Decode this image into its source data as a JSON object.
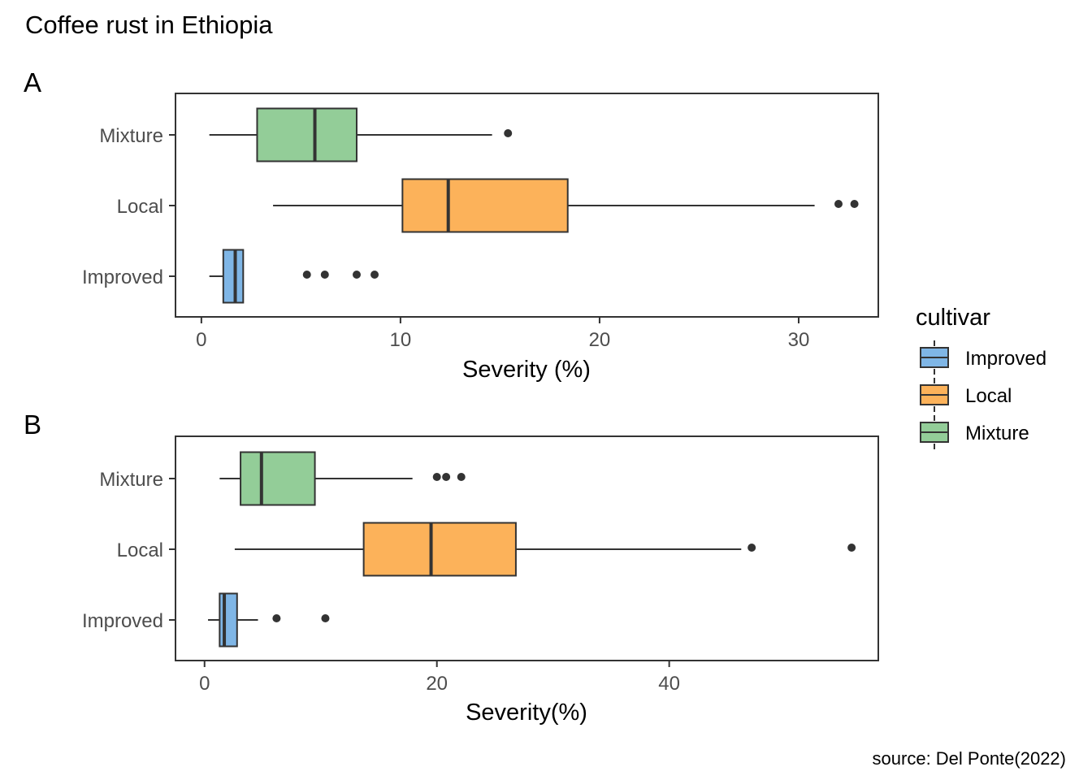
{
  "title": "Coffee rust in Ethiopia",
  "caption": "source: Del Ponte(2022)",
  "legend": {
    "title": "cultivar",
    "position": "right",
    "entries": [
      {
        "label": "Improved",
        "color": "#7fb6e6"
      },
      {
        "label": "Local",
        "color": "#fcb25a"
      },
      {
        "label": "Mixture",
        "color": "#93cd98"
      }
    ]
  },
  "chart_data": [
    {
      "panel_tag": "A",
      "type": "boxplot",
      "orientation": "horizontal",
      "xlabel": "Severity (%)",
      "ylabel": "",
      "xticks": [
        0,
        10,
        20,
        30
      ],
      "xlim": [
        -1.3,
        34.0
      ],
      "grid": false,
      "categories": [
        "Improved",
        "Local",
        "Mixture"
      ],
      "boxes": [
        {
          "name": "Improved",
          "color": "#7fb6e6",
          "whisker_low": 0.4,
          "q1": 1.1,
          "median": 1.7,
          "q3": 2.1,
          "whisker_high": 2.1,
          "outliers": [
            5.3,
            6.2,
            7.8,
            8.7
          ]
        },
        {
          "name": "Local",
          "color": "#fcb25a",
          "whisker_low": 3.6,
          "q1": 10.1,
          "median": 12.4,
          "q3": 18.4,
          "whisker_high": 30.8,
          "outliers": [
            32.0,
            32.8
          ]
        },
        {
          "name": "Mixture",
          "color": "#93cd98",
          "whisker_low": 0.4,
          "q1": 2.8,
          "median": 5.7,
          "q3": 7.8,
          "whisker_high": 14.6,
          "outliers": [
            15.4
          ]
        }
      ]
    },
    {
      "panel_tag": "B",
      "type": "boxplot",
      "orientation": "horizontal",
      "xlabel": "Severity(%)",
      "ylabel": "",
      "xticks": [
        0,
        20,
        40
      ],
      "xlim": [
        -2.5,
        58.0
      ],
      "grid": false,
      "categories": [
        "Improved",
        "Local",
        "Mixture"
      ],
      "boxes": [
        {
          "name": "Improved",
          "color": "#7fb6e6",
          "whisker_low": 0.3,
          "q1": 1.3,
          "median": 1.7,
          "q3": 2.8,
          "whisker_high": 4.6,
          "outliers": [
            6.2,
            10.4
          ]
        },
        {
          "name": "Local",
          "color": "#fcb25a",
          "whisker_low": 2.6,
          "q1": 13.7,
          "median": 19.5,
          "q3": 26.8,
          "whisker_high": 46.2,
          "outliers": [
            47.1,
            55.7
          ]
        },
        {
          "name": "Mixture",
          "color": "#93cd98",
          "whisker_low": 1.3,
          "q1": 3.1,
          "median": 4.9,
          "q3": 9.5,
          "whisker_high": 17.9,
          "outliers": [
            20.0,
            20.8,
            22.1
          ]
        }
      ]
    }
  ]
}
